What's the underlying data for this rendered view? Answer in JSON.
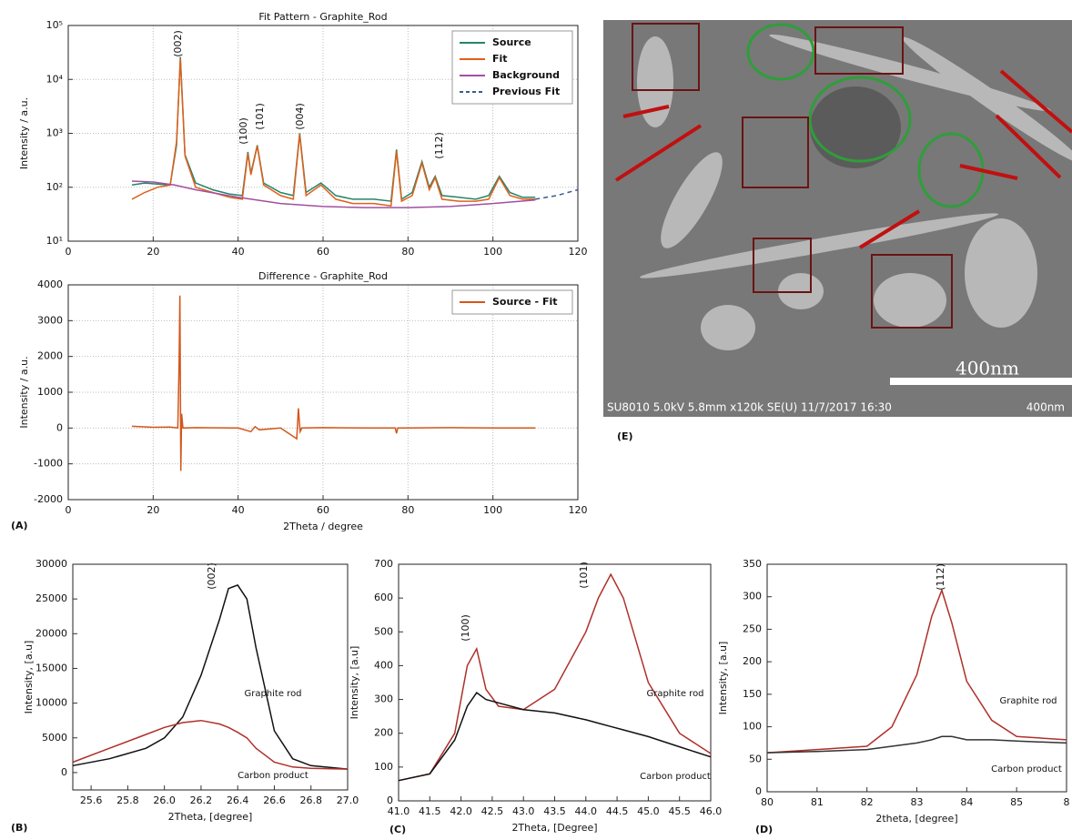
{
  "chart_data": [
    {
      "type": "line",
      "title": "Fit Pattern - Graphite_Rod",
      "ylabel": "Intensity / a.u.",
      "yscale": "log",
      "grid": true,
      "legend": "upper right",
      "xlim": [
        0,
        120
      ],
      "xticks": [
        0,
        20,
        40,
        60,
        80,
        100,
        120
      ],
      "ylim": [
        10,
        100000
      ],
      "yticks": [
        {
          "value": 10,
          "label": "10¹"
        },
        {
          "value": 100,
          "label": "10²"
        },
        {
          "value": 1000,
          "label": "10³"
        },
        {
          "value": 10000,
          "label": "10⁴"
        },
        {
          "value": 100000,
          "label": "10⁵"
        }
      ],
      "annotations": [
        "(002)",
        "(100)",
        "(101)",
        "(004)",
        "(112)"
      ],
      "series": [
        {
          "name": "Source",
          "color": "#24846a",
          "x": [
            15,
            18,
            21,
            24,
            25.5,
            26.4,
            27.5,
            30,
            34,
            38,
            41,
            42.3,
            43,
            44.5,
            46,
            50,
            53,
            54.5,
            56,
            59.5,
            63,
            67,
            72,
            76,
            77.3,
            78.5,
            81,
            83.3,
            85,
            86.4,
            88,
            92,
            96,
            99,
            101.5,
            104,
            107,
            110
          ],
          "values": [
            110,
            120,
            115,
            110,
            600,
            26000,
            400,
            120,
            90,
            75,
            70,
            450,
            180,
            600,
            120,
            80,
            70,
            1000,
            80,
            120,
            70,
            60,
            60,
            55,
            500,
            60,
            80,
            300,
            100,
            160,
            70,
            65,
            60,
            70,
            160,
            80,
            65,
            65
          ]
        },
        {
          "name": "Fit",
          "color": "#e0601a",
          "x": [
            15,
            18,
            21,
            24,
            25.5,
            26.4,
            27.5,
            30,
            34,
            38,
            41,
            42.3,
            43,
            44.5,
            46,
            50,
            53,
            54.5,
            56,
            59.5,
            63,
            67,
            72,
            76,
            77.3,
            78.5,
            81,
            83.3,
            85,
            86.4,
            88,
            92,
            96,
            99,
            101.5,
            104,
            107,
            110
          ],
          "values": [
            60,
            80,
            100,
            110,
            700,
            24000,
            380,
            100,
            80,
            65,
            60,
            420,
            170,
            580,
            110,
            70,
            60,
            950,
            70,
            110,
            60,
            50,
            50,
            45,
            460,
            55,
            70,
            280,
            90,
            150,
            60,
            55,
            55,
            60,
            150,
            70,
            60,
            60
          ]
        },
        {
          "name": "Background",
          "color": "#a050a0",
          "x": [
            15,
            20,
            25,
            30,
            40,
            50,
            60,
            70,
            80,
            90,
            100,
            110
          ],
          "values": [
            130,
            125,
            110,
            90,
            65,
            50,
            44,
            42,
            42,
            44,
            50,
            58
          ]
        },
        {
          "name": "Previous Fit",
          "color": "#3c5a8c",
          "dashed": true,
          "x": [
            110,
            115,
            120
          ],
          "values": [
            60,
            70,
            90
          ]
        }
      ]
    },
    {
      "type": "line",
      "title": "Difference - Graphite_Rod",
      "xlabel": "2Theta / degree",
      "ylabel": "Intensity / a.u.",
      "grid": true,
      "legend": "upper right",
      "xlim": [
        0,
        120
      ],
      "xticks": [
        0,
        20,
        40,
        60,
        80,
        100,
        120
      ],
      "ylim": [
        -2000,
        4000
      ],
      "yticks": [
        -2000,
        -1000,
        0,
        1000,
        2000,
        3000,
        4000
      ],
      "series": [
        {
          "name": "Source - Fit",
          "color": "#d2571b",
          "x": [
            15,
            20,
            24,
            25.8,
            26.1,
            26.3,
            26.5,
            26.7,
            27,
            30,
            40,
            43,
            44,
            45,
            50,
            53.8,
            54.2,
            54.6,
            55,
            60,
            70,
            77,
            77.3,
            77.6,
            80,
            90,
            100,
            110
          ],
          "values": [
            50,
            20,
            30,
            0,
            1800,
            3700,
            -1200,
            400,
            0,
            10,
            0,
            -100,
            40,
            -50,
            0,
            -300,
            550,
            -100,
            0,
            10,
            0,
            0,
            -150,
            0,
            0,
            10,
            0,
            0
          ]
        }
      ]
    },
    {
      "type": "line",
      "xlabel": "2Theta, [degree]",
      "ylabel": "Intensity, [a.u]",
      "legend": "inline",
      "xlim": [
        25.5,
        27
      ],
      "xticks": [
        25.6,
        25.8,
        {
          "value": 26,
          "label": "26.0"
        },
        26.2,
        26.4,
        26.6,
        26.8,
        {
          "value": 27,
          "label": "27.0"
        }
      ],
      "ylim": [
        -2500,
        30000
      ],
      "yticks": [
        0,
        5000,
        10000,
        15000,
        20000,
        25000,
        30000
      ],
      "annotations": [
        "(002)"
      ],
      "x": [
        25.5,
        25.7,
        25.9,
        26.0,
        26.1,
        26.2,
        26.3,
        26.35,
        26.4,
        26.45,
        26.5,
        26.6,
        26.7,
        26.8,
        27.0
      ],
      "series": [
        {
          "name": "Graphite rod",
          "color": "#111111",
          "values": [
            1000,
            2000,
            3500,
            5000,
            8000,
            14000,
            22000,
            26500,
            27000,
            25000,
            18000,
            6000,
            2000,
            1000,
            500
          ]
        },
        {
          "name": "Carbon product",
          "color": "#b0302a",
          "values": [
            1500,
            3500,
            5500,
            6500,
            7200,
            7500,
            7000,
            6500,
            5800,
            5000,
            3500,
            1500,
            800,
            600,
            500
          ]
        }
      ]
    },
    {
      "type": "line",
      "xlabel": "2Theta, [Degree]",
      "ylabel": "Intensity, [a.u]",
      "legend": "inline",
      "xlim": [
        41,
        46
      ],
      "xticks": [
        {
          "value": 41,
          "label": "41.0"
        },
        41.5,
        {
          "value": 42,
          "label": "42.0"
        },
        42.5,
        {
          "value": 43,
          "label": "43.0"
        },
        43.5,
        {
          "value": 44,
          "label": "44.0"
        },
        44.5,
        {
          "value": 45,
          "label": "45.0"
        },
        45.5,
        {
          "value": 46,
          "label": "46.0"
        }
      ],
      "ylim": [
        0,
        700
      ],
      "yticks": [
        0,
        100,
        200,
        300,
        400,
        500,
        600,
        700
      ],
      "annotations": [
        "(100)",
        "(101)"
      ],
      "x": [
        41,
        41.5,
        41.9,
        42.1,
        42.25,
        42.4,
        42.6,
        43,
        43.5,
        44,
        44.2,
        44.4,
        44.6,
        45,
        45.5,
        46
      ],
      "series": [
        {
          "name": "Graphite rod",
          "color": "#b0302a",
          "values": [
            60,
            80,
            200,
            400,
            450,
            330,
            280,
            270,
            330,
            500,
            600,
            670,
            600,
            350,
            200,
            140
          ]
        },
        {
          "name": "Carbon product",
          "color": "#111111",
          "values": [
            60,
            80,
            180,
            280,
            320,
            300,
            290,
            270,
            260,
            240,
            230,
            220,
            210,
            190,
            160,
            130
          ]
        }
      ]
    },
    {
      "type": "line",
      "xlabel": "2theta, [degree]",
      "ylabel": "Intensity, [a.u]",
      "legend": "inline",
      "xlim": [
        80,
        86
      ],
      "xticks": [
        80,
        81,
        82,
        83,
        84,
        85,
        {
          "value": 86,
          "label": "8"
        }
      ],
      "ylim": [
        0,
        350
      ],
      "yticks": [
        0,
        50,
        100,
        150,
        200,
        250,
        300,
        350
      ],
      "annotations": [
        "(112)"
      ],
      "x": [
        80,
        81,
        82,
        82.5,
        83,
        83.3,
        83.5,
        83.7,
        84,
        84.5,
        85,
        86
      ],
      "series": [
        {
          "name": "Graphite rod",
          "color": "#b0302a",
          "values": [
            60,
            65,
            70,
            100,
            180,
            270,
            310,
            260,
            170,
            110,
            85,
            80
          ]
        },
        {
          "name": "Carbon product",
          "color": "#333333",
          "values": [
            60,
            62,
            65,
            70,
            75,
            80,
            85,
            85,
            80,
            80,
            78,
            75
          ]
        }
      ]
    }
  ],
  "panel_labels": [
    "(A)",
    "(B)",
    "(C)",
    "(D)",
    "(E)"
  ],
  "image": {
    "scale_bar": "400nm",
    "info_bar": "SU8010 5.0kV 5.8mm x120k SE(U) 11/7/2017 16:30",
    "info_scale": "400nm"
  }
}
